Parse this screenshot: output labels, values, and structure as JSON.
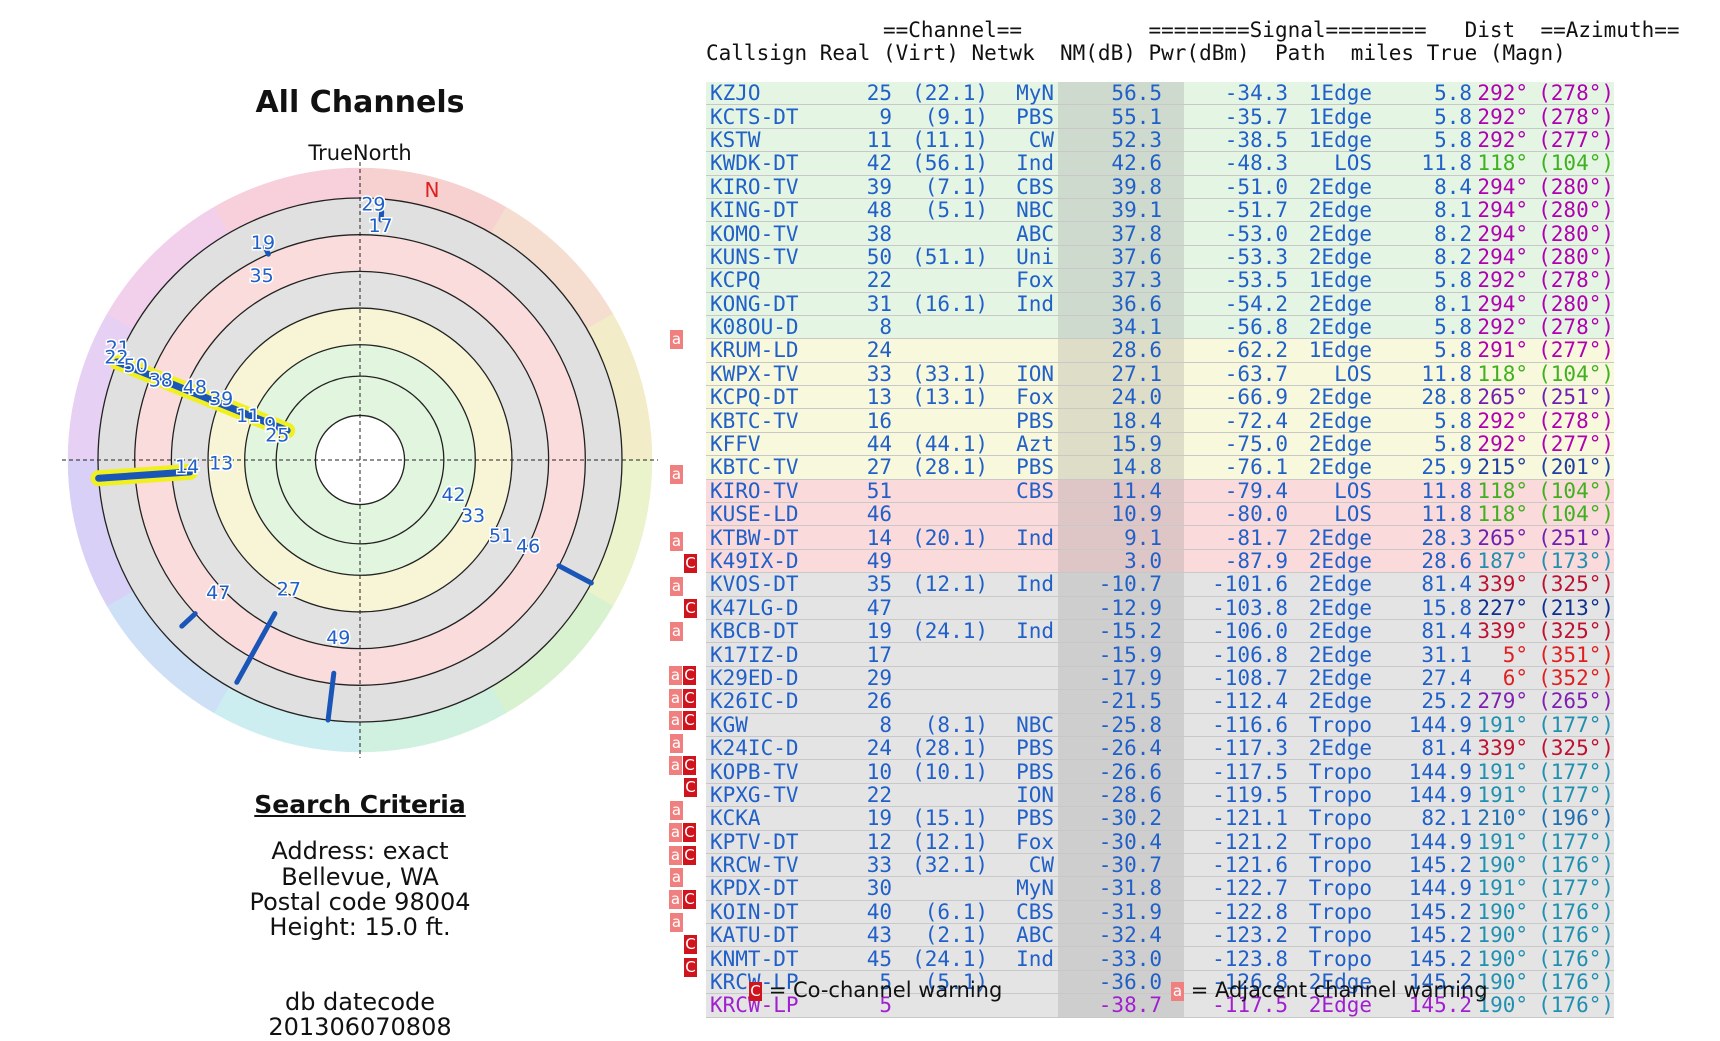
{
  "title": "All Channels",
  "radar": {
    "north_label": "TrueNorth",
    "n_marker": "N",
    "labels": [
      {
        "text": "29",
        "az": 3,
        "r": 0.98
      },
      {
        "text": "17",
        "az": 5,
        "r": 0.9
      },
      {
        "text": "19",
        "az": 336,
        "r": 0.91
      },
      {
        "text": "35",
        "az": 332,
        "r": 0.8
      },
      {
        "text": "21",
        "az": 295,
        "r": 1.02
      },
      {
        "text": "22",
        "az": 293,
        "r": 1.01
      },
      {
        "text": "50",
        "az": 293,
        "r": 0.93
      },
      {
        "text": "38",
        "az": 292,
        "r": 0.82
      },
      {
        "text": "48",
        "az": 294,
        "r": 0.69
      },
      {
        "text": "39",
        "az": 294,
        "r": 0.58
      },
      {
        "text": "11",
        "az": 292,
        "r": 0.46
      },
      {
        "text": "9",
        "az": 292,
        "r": 0.37
      },
      {
        "text": "25",
        "az": 287,
        "r": 0.33
      },
      {
        "text": "14",
        "az": 268,
        "r": 0.66
      },
      {
        "text": "13",
        "az": 269,
        "r": 0.53
      },
      {
        "text": "42",
        "az": 110,
        "r": 0.38
      },
      {
        "text": "33",
        "az": 116,
        "r": 0.48
      },
      {
        "text": "51",
        "az": 118,
        "r": 0.61
      },
      {
        "text": "46",
        "az": 117,
        "r": 0.72
      },
      {
        "text": "47",
        "az": 227,
        "r": 0.74
      },
      {
        "text": "27",
        "az": 209,
        "r": 0.56
      },
      {
        "text": "49",
        "az": 187,
        "r": 0.68
      }
    ],
    "bars": [
      {
        "az": 292,
        "r1": 0.3,
        "r2": 1.0,
        "hl": true
      },
      {
        "az": 266,
        "r1": 0.65,
        "r2": 1.0,
        "hl": true
      },
      {
        "az": 118,
        "r1": 0.86,
        "r2": 1.0,
        "hl": false
      },
      {
        "az": 227,
        "r1": 0.86,
        "r2": 0.93,
        "hl": false
      },
      {
        "az": 209,
        "r1": 0.67,
        "r2": 0.97,
        "hl": false
      },
      {
        "az": 187,
        "r1": 0.82,
        "r2": 1.0,
        "hl": false
      },
      {
        "az": 5,
        "r1": 0.92,
        "r2": 0.95,
        "hl": false
      },
      {
        "az": 336,
        "r1": 0.86,
        "r2": 0.89,
        "hl": false
      }
    ]
  },
  "criteria": {
    "heading": "Search Criteria",
    "lines": [
      "Address: exact",
      "Bellevue, WA",
      "Postal code 98004",
      "Height: 15.0 ft."
    ],
    "db_label": "db datecode",
    "db_value": "201306070808"
  },
  "table": {
    "header1": "              ==Channel==          ========Signal========   Dist  ==Azimuth==",
    "header2": "Callsign Real (Virt) Netwk  NM(dB) Pwr(dBm)  Path  miles True (Magn)",
    "rows": [
      {
        "warn": "",
        "call": "KZJO",
        "real": "25",
        "virt": "(22.1)",
        "net": "MyN",
        "nm": "56.5",
        "pwr": "-34.3",
        "path": "1Edge",
        "dist": "5.8",
        "az": "292°",
        "mag": "(278°)",
        "bg": "#e4f5e4",
        "tc": "#2060c8",
        "ac": "#b000b0"
      },
      {
        "warn": "",
        "call": "KCTS-DT",
        "real": "9",
        "virt": "(9.1)",
        "net": "PBS",
        "nm": "55.1",
        "pwr": "-35.7",
        "path": "1Edge",
        "dist": "5.8",
        "az": "292°",
        "mag": "(278°)",
        "bg": "#e4f5e4",
        "tc": "#2060c8",
        "ac": "#b000b0"
      },
      {
        "warn": "",
        "call": "KSTW",
        "real": "11",
        "virt": "(11.1)",
        "net": "CW",
        "nm": "52.3",
        "pwr": "-38.5",
        "path": "1Edge",
        "dist": "5.8",
        "az": "292°",
        "mag": "(277°)",
        "bg": "#e4f5e4",
        "tc": "#2060c8",
        "ac": "#b000b0"
      },
      {
        "warn": "",
        "call": "KWDK-DT",
        "real": "42",
        "virt": "(56.1)",
        "net": "Ind",
        "nm": "42.6",
        "pwr": "-48.3",
        "path": "LOS",
        "dist": "11.8",
        "az": "118°",
        "mag": "(104°)",
        "bg": "#e4f5e4",
        "tc": "#2060c8",
        "ac": "#40b020"
      },
      {
        "warn": "",
        "call": "KIRO-TV",
        "real": "39",
        "virt": "(7.1)",
        "net": "CBS",
        "nm": "39.8",
        "pwr": "-51.0",
        "path": "2Edge",
        "dist": "8.4",
        "az": "294°",
        "mag": "(280°)",
        "bg": "#e4f5e4",
        "tc": "#2060c8",
        "ac": "#b000b0"
      },
      {
        "warn": "",
        "call": "KING-DT",
        "real": "48",
        "virt": "(5.1)",
        "net": "NBC",
        "nm": "39.1",
        "pwr": "-51.7",
        "path": "2Edge",
        "dist": "8.1",
        "az": "294°",
        "mag": "(280°)",
        "bg": "#e4f5e4",
        "tc": "#2060c8",
        "ac": "#b000b0"
      },
      {
        "warn": "",
        "call": "KOMO-TV",
        "real": "38",
        "virt": "",
        "net": "ABC",
        "nm": "37.8",
        "pwr": "-53.0",
        "path": "2Edge",
        "dist": "8.2",
        "az": "294°",
        "mag": "(280°)",
        "bg": "#e4f5e4",
        "tc": "#2060c8",
        "ac": "#b000b0"
      },
      {
        "warn": "",
        "call": "KUNS-TV",
        "real": "50",
        "virt": "(51.1)",
        "net": "Uni",
        "nm": "37.6",
        "pwr": "-53.3",
        "path": "2Edge",
        "dist": "8.2",
        "az": "294°",
        "mag": "(280°)",
        "bg": "#e4f5e4",
        "tc": "#2060c8",
        "ac": "#b000b0"
      },
      {
        "warn": "",
        "call": "KCPQ",
        "real": "22",
        "virt": "",
        "net": "Fox",
        "nm": "37.3",
        "pwr": "-53.5",
        "path": "1Edge",
        "dist": "5.8",
        "az": "292°",
        "mag": "(278°)",
        "bg": "#e4f5e4",
        "tc": "#2060c8",
        "ac": "#b000b0"
      },
      {
        "warn": "",
        "call": "KONG-DT",
        "real": "31",
        "virt": "(16.1)",
        "net": "Ind",
        "nm": "36.6",
        "pwr": "-54.2",
        "path": "2Edge",
        "dist": "8.1",
        "az": "294°",
        "mag": "(280°)",
        "bg": "#e4f5e4",
        "tc": "#2060c8",
        "ac": "#b000b0"
      },
      {
        "warn": "",
        "call": "K08OU-D",
        "real": "8",
        "virt": "",
        "net": "",
        "nm": "34.1",
        "pwr": "-56.8",
        "path": "2Edge",
        "dist": "5.8",
        "az": "292°",
        "mag": "(278°)",
        "bg": "#e4f5e4",
        "tc": "#2060c8",
        "ac": "#b000b0"
      },
      {
        "warn": "a",
        "call": "KRUM-LD",
        "real": "24",
        "virt": "",
        "net": "",
        "nm": "28.6",
        "pwr": "-62.2",
        "path": "1Edge",
        "dist": "5.8",
        "az": "291°",
        "mag": "(277°)",
        "bg": "#f8f8dc",
        "tc": "#2060c8",
        "ac": "#b000b0"
      },
      {
        "warn": "",
        "call": "KWPX-TV",
        "real": "33",
        "virt": "(33.1)",
        "net": "ION",
        "nm": "27.1",
        "pwr": "-63.7",
        "path": "LOS",
        "dist": "11.8",
        "az": "118°",
        "mag": "(104°)",
        "bg": "#f8f8dc",
        "tc": "#2060c8",
        "ac": "#40b020"
      },
      {
        "warn": "",
        "call": "KCPQ-DT",
        "real": "13",
        "virt": "(13.1)",
        "net": "Fox",
        "nm": "24.0",
        "pwr": "-66.9",
        "path": "2Edge",
        "dist": "28.8",
        "az": "265°",
        "mag": "(251°)",
        "bg": "#f8f8dc",
        "tc": "#2060c8",
        "ac": "#7020b0"
      },
      {
        "warn": "",
        "call": "KBTC-TV",
        "real": "16",
        "virt": "",
        "net": "PBS",
        "nm": "18.4",
        "pwr": "-72.4",
        "path": "2Edge",
        "dist": "5.8",
        "az": "292°",
        "mag": "(278°)",
        "bg": "#f8f8dc",
        "tc": "#2060c8",
        "ac": "#b000b0"
      },
      {
        "warn": "",
        "call": "KFFV",
        "real": "44",
        "virt": "(44.1)",
        "net": "Azt",
        "nm": "15.9",
        "pwr": "-75.0",
        "path": "2Edge",
        "dist": "5.8",
        "az": "292°",
        "mag": "(277°)",
        "bg": "#f8f8dc",
        "tc": "#2060c8",
        "ac": "#b000b0"
      },
      {
        "warn": "",
        "call": "KBTC-TV",
        "real": "27",
        "virt": "(28.1)",
        "net": "PBS",
        "nm": "14.8",
        "pwr": "-76.1",
        "path": "2Edge",
        "dist": "25.9",
        "az": "215°",
        "mag": "(201°)",
        "bg": "#f8f8dc",
        "tc": "#2060c8",
        "ac": "#2040a0"
      },
      {
        "warn": "a",
        "call": "KIRO-TV",
        "real": "51",
        "virt": "",
        "net": "CBS",
        "nm": "11.4",
        "pwr": "-79.4",
        "path": "LOS",
        "dist": "11.8",
        "az": "118°",
        "mag": "(104°)",
        "bg": "#fadada",
        "tc": "#2060c8",
        "ac": "#40b020"
      },
      {
        "warn": "",
        "call": "KUSE-LD",
        "real": "46",
        "virt": "",
        "net": "",
        "nm": "10.9",
        "pwr": "-80.0",
        "path": "LOS",
        "dist": "11.8",
        "az": "118°",
        "mag": "(104°)",
        "bg": "#fadada",
        "tc": "#2060c8",
        "ac": "#40b020"
      },
      {
        "warn": "",
        "call": "KTBW-DT",
        "real": "14",
        "virt": "(20.1)",
        "net": "Ind",
        "nm": "9.1",
        "pwr": "-81.7",
        "path": "2Edge",
        "dist": "28.3",
        "az": "265°",
        "mag": "(251°)",
        "bg": "#fadada",
        "tc": "#2060c8",
        "ac": "#7020b0"
      },
      {
        "warn": "a",
        "call": "K49IX-D",
        "real": "49",
        "virt": "",
        "net": "",
        "nm": "3.0",
        "pwr": "-87.9",
        "path": "2Edge",
        "dist": "28.6",
        "az": "187°",
        "mag": "(173°)",
        "bg": "#fadada",
        "tc": "#2060c8",
        "ac": "#2090b0"
      },
      {
        "warn": "c",
        "call": "KVOS-DT",
        "real": "35",
        "virt": "(12.1)",
        "net": "Ind",
        "nm": "-10.7",
        "pwr": "-101.6",
        "path": "2Edge",
        "dist": "81.4",
        "az": "339°",
        "mag": "(325°)",
        "bg": "#e4e4e4",
        "tc": "#2060c8",
        "ac": "#c01030"
      },
      {
        "warn": "a",
        "call": "K47LG-D",
        "real": "47",
        "virt": "",
        "net": "",
        "nm": "-12.9",
        "pwr": "-103.8",
        "path": "2Edge",
        "dist": "15.8",
        "az": "227°",
        "mag": "(213°)",
        "bg": "#e4e4e4",
        "tc": "#2060c8",
        "ac": "#103090"
      },
      {
        "warn": "c",
        "call": "KBCB-DT",
        "real": "19",
        "virt": "(24.1)",
        "net": "Ind",
        "nm": "-15.2",
        "pwr": "-106.0",
        "path": "2Edge",
        "dist": "81.4",
        "az": "339°",
        "mag": "(325°)",
        "bg": "#e4e4e4",
        "tc": "#2060c8",
        "ac": "#c01030"
      },
      {
        "warn": "a",
        "call": "K17IZ-D",
        "real": "17",
        "virt": "",
        "net": "",
        "nm": "-15.9",
        "pwr": "-106.8",
        "path": "2Edge",
        "dist": "31.1",
        "az": "5°",
        "mag": "(351°)",
        "bg": "#e4e4e4",
        "tc": "#2060c8",
        "ac": "#e02020"
      },
      {
        "warn": "",
        "call": "K29ED-D",
        "real": "29",
        "virt": "",
        "net": "",
        "nm": "-17.9",
        "pwr": "-108.7",
        "path": "2Edge",
        "dist": "27.4",
        "az": "6°",
        "mag": "(352°)",
        "bg": "#e4e4e4",
        "tc": "#2060c8",
        "ac": "#e02020"
      },
      {
        "warn": "ac",
        "call": "K26IC-D",
        "real": "26",
        "virt": "",
        "net": "",
        "nm": "-21.5",
        "pwr": "-112.4",
        "path": "2Edge",
        "dist": "25.2",
        "az": "279°",
        "mag": "(265°)",
        "bg": "#e4e4e4",
        "tc": "#2060c8",
        "ac": "#8020b0"
      },
      {
        "warn": "ac",
        "call": "KGW",
        "real": "8",
        "virt": "(8.1)",
        "net": "NBC",
        "nm": "-25.8",
        "pwr": "-116.6",
        "path": "Tropo",
        "dist": "144.9",
        "az": "191°",
        "mag": "(177°)",
        "bg": "#e4e4e4",
        "tc": "#2060c8",
        "ac": "#2090b0"
      },
      {
        "warn": "ac",
        "call": "K24IC-D",
        "real": "24",
        "virt": "(28.1)",
        "net": "PBS",
        "nm": "-26.4",
        "pwr": "-117.3",
        "path": "2Edge",
        "dist": "81.4",
        "az": "339°",
        "mag": "(325°)",
        "bg": "#e4e4e4",
        "tc": "#2060c8",
        "ac": "#c01030"
      },
      {
        "warn": "a",
        "call": "KOPB-TV",
        "real": "10",
        "virt": "(10.1)",
        "net": "PBS",
        "nm": "-26.6",
        "pwr": "-117.5",
        "path": "Tropo",
        "dist": "144.9",
        "az": "191°",
        "mag": "(177°)",
        "bg": "#e4e4e4",
        "tc": "#2060c8",
        "ac": "#2090b0"
      },
      {
        "warn": "ac",
        "call": "KPXG-TV",
        "real": "22",
        "virt": "",
        "net": "ION",
        "nm": "-28.6",
        "pwr": "-119.5",
        "path": "Tropo",
        "dist": "144.9",
        "az": "191°",
        "mag": "(177°)",
        "bg": "#e4e4e4",
        "tc": "#2060c8",
        "ac": "#2090b0"
      },
      {
        "warn": "c",
        "call": "KCKA",
        "real": "19",
        "virt": "(15.1)",
        "net": "PBS",
        "nm": "-30.2",
        "pwr": "-121.1",
        "path": "Tropo",
        "dist": "82.1",
        "az": "210°",
        "mag": "(196°)",
        "bg": "#e4e4e4",
        "tc": "#2060c8",
        "ac": "#2070b0"
      },
      {
        "warn": "a",
        "call": "KPTV-DT",
        "real": "12",
        "virt": "(12.1)",
        "net": "Fox",
        "nm": "-30.4",
        "pwr": "-121.2",
        "path": "Tropo",
        "dist": "144.9",
        "az": "191°",
        "mag": "(177°)",
        "bg": "#e4e4e4",
        "tc": "#2060c8",
        "ac": "#2090b0"
      },
      {
        "warn": "ac",
        "call": "KRCW-TV",
        "real": "33",
        "virt": "(32.1)",
        "net": "CW",
        "nm": "-30.7",
        "pwr": "-121.6",
        "path": "Tropo",
        "dist": "145.2",
        "az": "190°",
        "mag": "(176°)",
        "bg": "#e4e4e4",
        "tc": "#2060c8",
        "ac": "#2090b0"
      },
      {
        "warn": "ac",
        "call": "KPDX-DT",
        "real": "30",
        "virt": "",
        "net": "MyN",
        "nm": "-31.8",
        "pwr": "-122.7",
        "path": "Tropo",
        "dist": "144.9",
        "az": "191°",
        "mag": "(177°)",
        "bg": "#e4e4e4",
        "tc": "#2060c8",
        "ac": "#2090b0"
      },
      {
        "warn": "a",
        "call": "KOIN-DT",
        "real": "40",
        "virt": "(6.1)",
        "net": "CBS",
        "nm": "-31.9",
        "pwr": "-122.8",
        "path": "Tropo",
        "dist": "145.2",
        "az": "190°",
        "mag": "(176°)",
        "bg": "#e4e4e4",
        "tc": "#2060c8",
        "ac": "#2090b0"
      },
      {
        "warn": "ac",
        "call": "KATU-DT",
        "real": "43",
        "virt": "(2.1)",
        "net": "ABC",
        "nm": "-32.4",
        "pwr": "-123.2",
        "path": "Tropo",
        "dist": "145.2",
        "az": "190°",
        "mag": "(176°)",
        "bg": "#e4e4e4",
        "tc": "#2060c8",
        "ac": "#2090b0"
      },
      {
        "warn": "a",
        "call": "KNMT-DT",
        "real": "45",
        "virt": "(24.1)",
        "net": "Ind",
        "nm": "-33.0",
        "pwr": "-123.8",
        "path": "Tropo",
        "dist": "145.2",
        "az": "190°",
        "mag": "(176°)",
        "bg": "#e4e4e4",
        "tc": "#2060c8",
        "ac": "#2090b0"
      },
      {
        "warn": "c",
        "call": "KRCW-LP",
        "real": "5",
        "virt": "(5.1)",
        "net": "",
        "nm": "-36.0",
        "pwr": "-126.8",
        "path": "2Edge",
        "dist": "145.2",
        "az": "190°",
        "mag": "(176°)",
        "bg": "#e4e4e4",
        "tc": "#2060c8",
        "ac": "#2090b0"
      },
      {
        "warn": "c",
        "call": "KRCW-LP",
        "real": "5",
        "virt": "",
        "net": "",
        "nm": "-38.7",
        "pwr": "-117.5",
        "path": "2Edge",
        "dist": "145.2",
        "az": "190°",
        "mag": "(176°)",
        "bg": "#e4e4e4",
        "tc": "#a020d0",
        "ac": "#2090b0"
      }
    ]
  },
  "legend": {
    "co_badge": "C",
    "co_text": "= Co-channel warning",
    "adj_badge": "a",
    "adj_text": "= Adjacent channel warning"
  }
}
